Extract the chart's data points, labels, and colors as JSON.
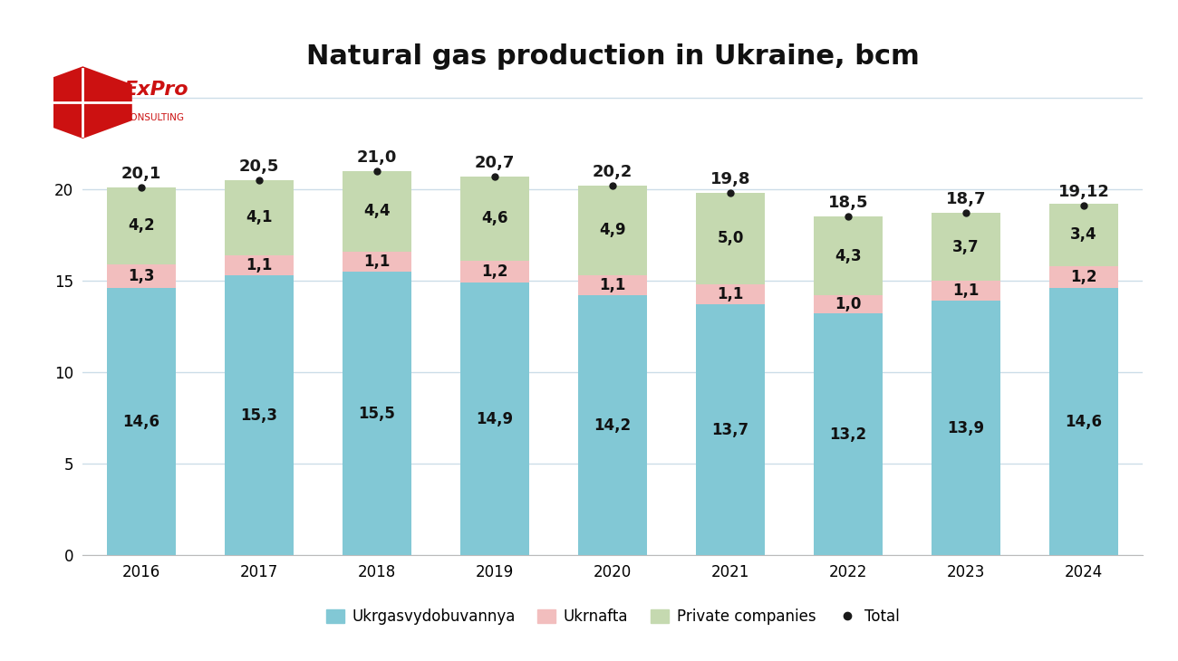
{
  "title": "Natural gas production in Ukraine, bcm",
  "years": [
    2016,
    2017,
    2018,
    2019,
    2020,
    2021,
    2022,
    2023,
    2024
  ],
  "ukrgaz": [
    14.6,
    15.3,
    15.5,
    14.9,
    14.2,
    13.7,
    13.2,
    13.9,
    14.6
  ],
  "ukrnafta": [
    1.3,
    1.1,
    1.1,
    1.2,
    1.1,
    1.1,
    1.0,
    1.1,
    1.2
  ],
  "private": [
    4.2,
    4.1,
    4.4,
    4.6,
    4.9,
    5.0,
    4.3,
    3.7,
    3.4
  ],
  "totals": [
    20.1,
    20.5,
    21.0,
    20.7,
    20.2,
    19.8,
    18.5,
    18.7,
    19.12
  ],
  "color_ukrgaz": "#82C8D5",
  "color_ukrnafta": "#F2BEBE",
  "color_private": "#C5D9B0",
  "color_total_dot": "#1a1a1a",
  "ylim": [
    0,
    26
  ],
  "yticks": [
    0,
    5,
    10,
    15,
    20,
    25
  ],
  "bar_width": 0.58,
  "legend_labels": [
    "Ukrgasvydobuvannya",
    "Ukrnafta",
    "Private companies",
    "Total"
  ],
  "background_color": "#ffffff",
  "grid_color": "#ccdde8",
  "font_size_title": 22,
  "font_size_legend": 12,
  "font_size_ticks": 12,
  "font_size_total": 13,
  "font_size_bar_labels": 12
}
